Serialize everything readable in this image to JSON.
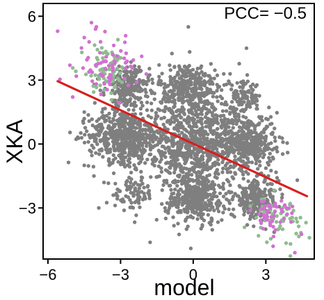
{
  "chart_data": {
    "type": "scatter",
    "title": "",
    "xlabel": "model",
    "ylabel": "XKA",
    "xlim": [
      -6.2,
      5.0
    ],
    "ylim": [
      -5.4,
      6.6
    ],
    "xticks": [
      -6,
      -3,
      0,
      3
    ],
    "xtick_labels": [
      "−6",
      "−3",
      "0",
      "3"
    ],
    "yticks": [
      -3,
      0,
      3,
      6
    ],
    "ytick_labels": [
      "−3",
      "0",
      "3",
      "6"
    ],
    "annotation": "PCC= −0.5",
    "grid": false,
    "legend": "none",
    "colors": {
      "points": "#7f7f7f",
      "highlight_a": "#8fbc8f",
      "highlight_b": "#d36fd3",
      "fit_line": "#d62020"
    },
    "fit_line": {
      "x": [
        -5.6,
        4.7
      ],
      "y": [
        2.95,
        -2.45
      ]
    },
    "clusters": [
      {
        "series": "points",
        "cx": 0.0,
        "cy": 0.0,
        "sx": 1.15,
        "sy": 1.1,
        "n": 900
      },
      {
        "series": "points",
        "cx": -2.9,
        "cy": 0.4,
        "sx": 0.7,
        "sy": 0.6,
        "n": 500
      },
      {
        "series": "points",
        "cx": 2.3,
        "cy": 0.1,
        "sx": 0.55,
        "sy": 0.65,
        "n": 350
      },
      {
        "series": "points",
        "cx": -0.2,
        "cy": 2.6,
        "sx": 0.6,
        "sy": 0.6,
        "n": 350
      },
      {
        "series": "points",
        "cx": 0.1,
        "cy": -2.6,
        "sx": 0.6,
        "sy": 0.55,
        "n": 350
      },
      {
        "series": "points",
        "cx": -2.7,
        "cy": 2.7,
        "sx": 0.45,
        "sy": 0.45,
        "n": 250
      },
      {
        "series": "points",
        "cx": 2.6,
        "cy": -2.6,
        "sx": 0.45,
        "sy": 0.45,
        "n": 250
      },
      {
        "series": "points",
        "cx": 2.1,
        "cy": 2.2,
        "sx": 0.35,
        "sy": 0.35,
        "n": 90
      },
      {
        "series": "points",
        "cx": -2.5,
        "cy": -2.3,
        "sx": 0.4,
        "sy": 0.4,
        "n": 80
      },
      {
        "series": "highlight_a",
        "cx": -3.6,
        "cy": 3.5,
        "sx": 0.55,
        "sy": 0.55,
        "n": 70
      },
      {
        "series": "highlight_b",
        "cx": -3.5,
        "cy": 3.6,
        "sx": 0.6,
        "sy": 0.6,
        "n": 65
      },
      {
        "series": "highlight_a",
        "cx": 3.5,
        "cy": -3.5,
        "sx": 0.5,
        "sy": 0.5,
        "n": 60
      },
      {
        "series": "highlight_b",
        "cx": 3.3,
        "cy": -3.3,
        "sx": 0.45,
        "sy": 0.45,
        "n": 45
      }
    ],
    "outliers": [
      {
        "x": -5.6,
        "y": 5.3,
        "series": "highlight_b"
      },
      {
        "x": -4.2,
        "y": 5.7,
        "series": "highlight_b"
      },
      {
        "x": -4.5,
        "y": 5.0,
        "series": "highlight_b"
      },
      {
        "x": -4.0,
        "y": 5.5,
        "series": "highlight_b"
      },
      {
        "x": 4.2,
        "y": -5.1,
        "series": "highlight_b"
      },
      {
        "x": 4.8,
        "y": -4.4,
        "series": "highlight_a"
      },
      {
        "x": 3.3,
        "y": -4.8,
        "series": "highlight_b"
      },
      {
        "x": -4.6,
        "y": 4.3,
        "series": "highlight_a"
      },
      {
        "x": -0.2,
        "y": 5.5,
        "series": "points"
      },
      {
        "x": -0.1,
        "y": -4.9,
        "series": "points"
      },
      {
        "x": 2.2,
        "y": 4.5,
        "series": "points"
      },
      {
        "x": -4.5,
        "y": -1.0,
        "series": "points"
      },
      {
        "x": -4.4,
        "y": 0.6,
        "series": "points"
      },
      {
        "x": -4.5,
        "y": 1.5,
        "series": "points"
      },
      {
        "x": 4.3,
        "y": -1.7,
        "series": "points"
      },
      {
        "x": -3.9,
        "y": -3.0,
        "series": "points"
      },
      {
        "x": -4.1,
        "y": -1.5,
        "series": "points"
      },
      {
        "x": 3.9,
        "y": -0.4,
        "series": "points"
      }
    ]
  }
}
